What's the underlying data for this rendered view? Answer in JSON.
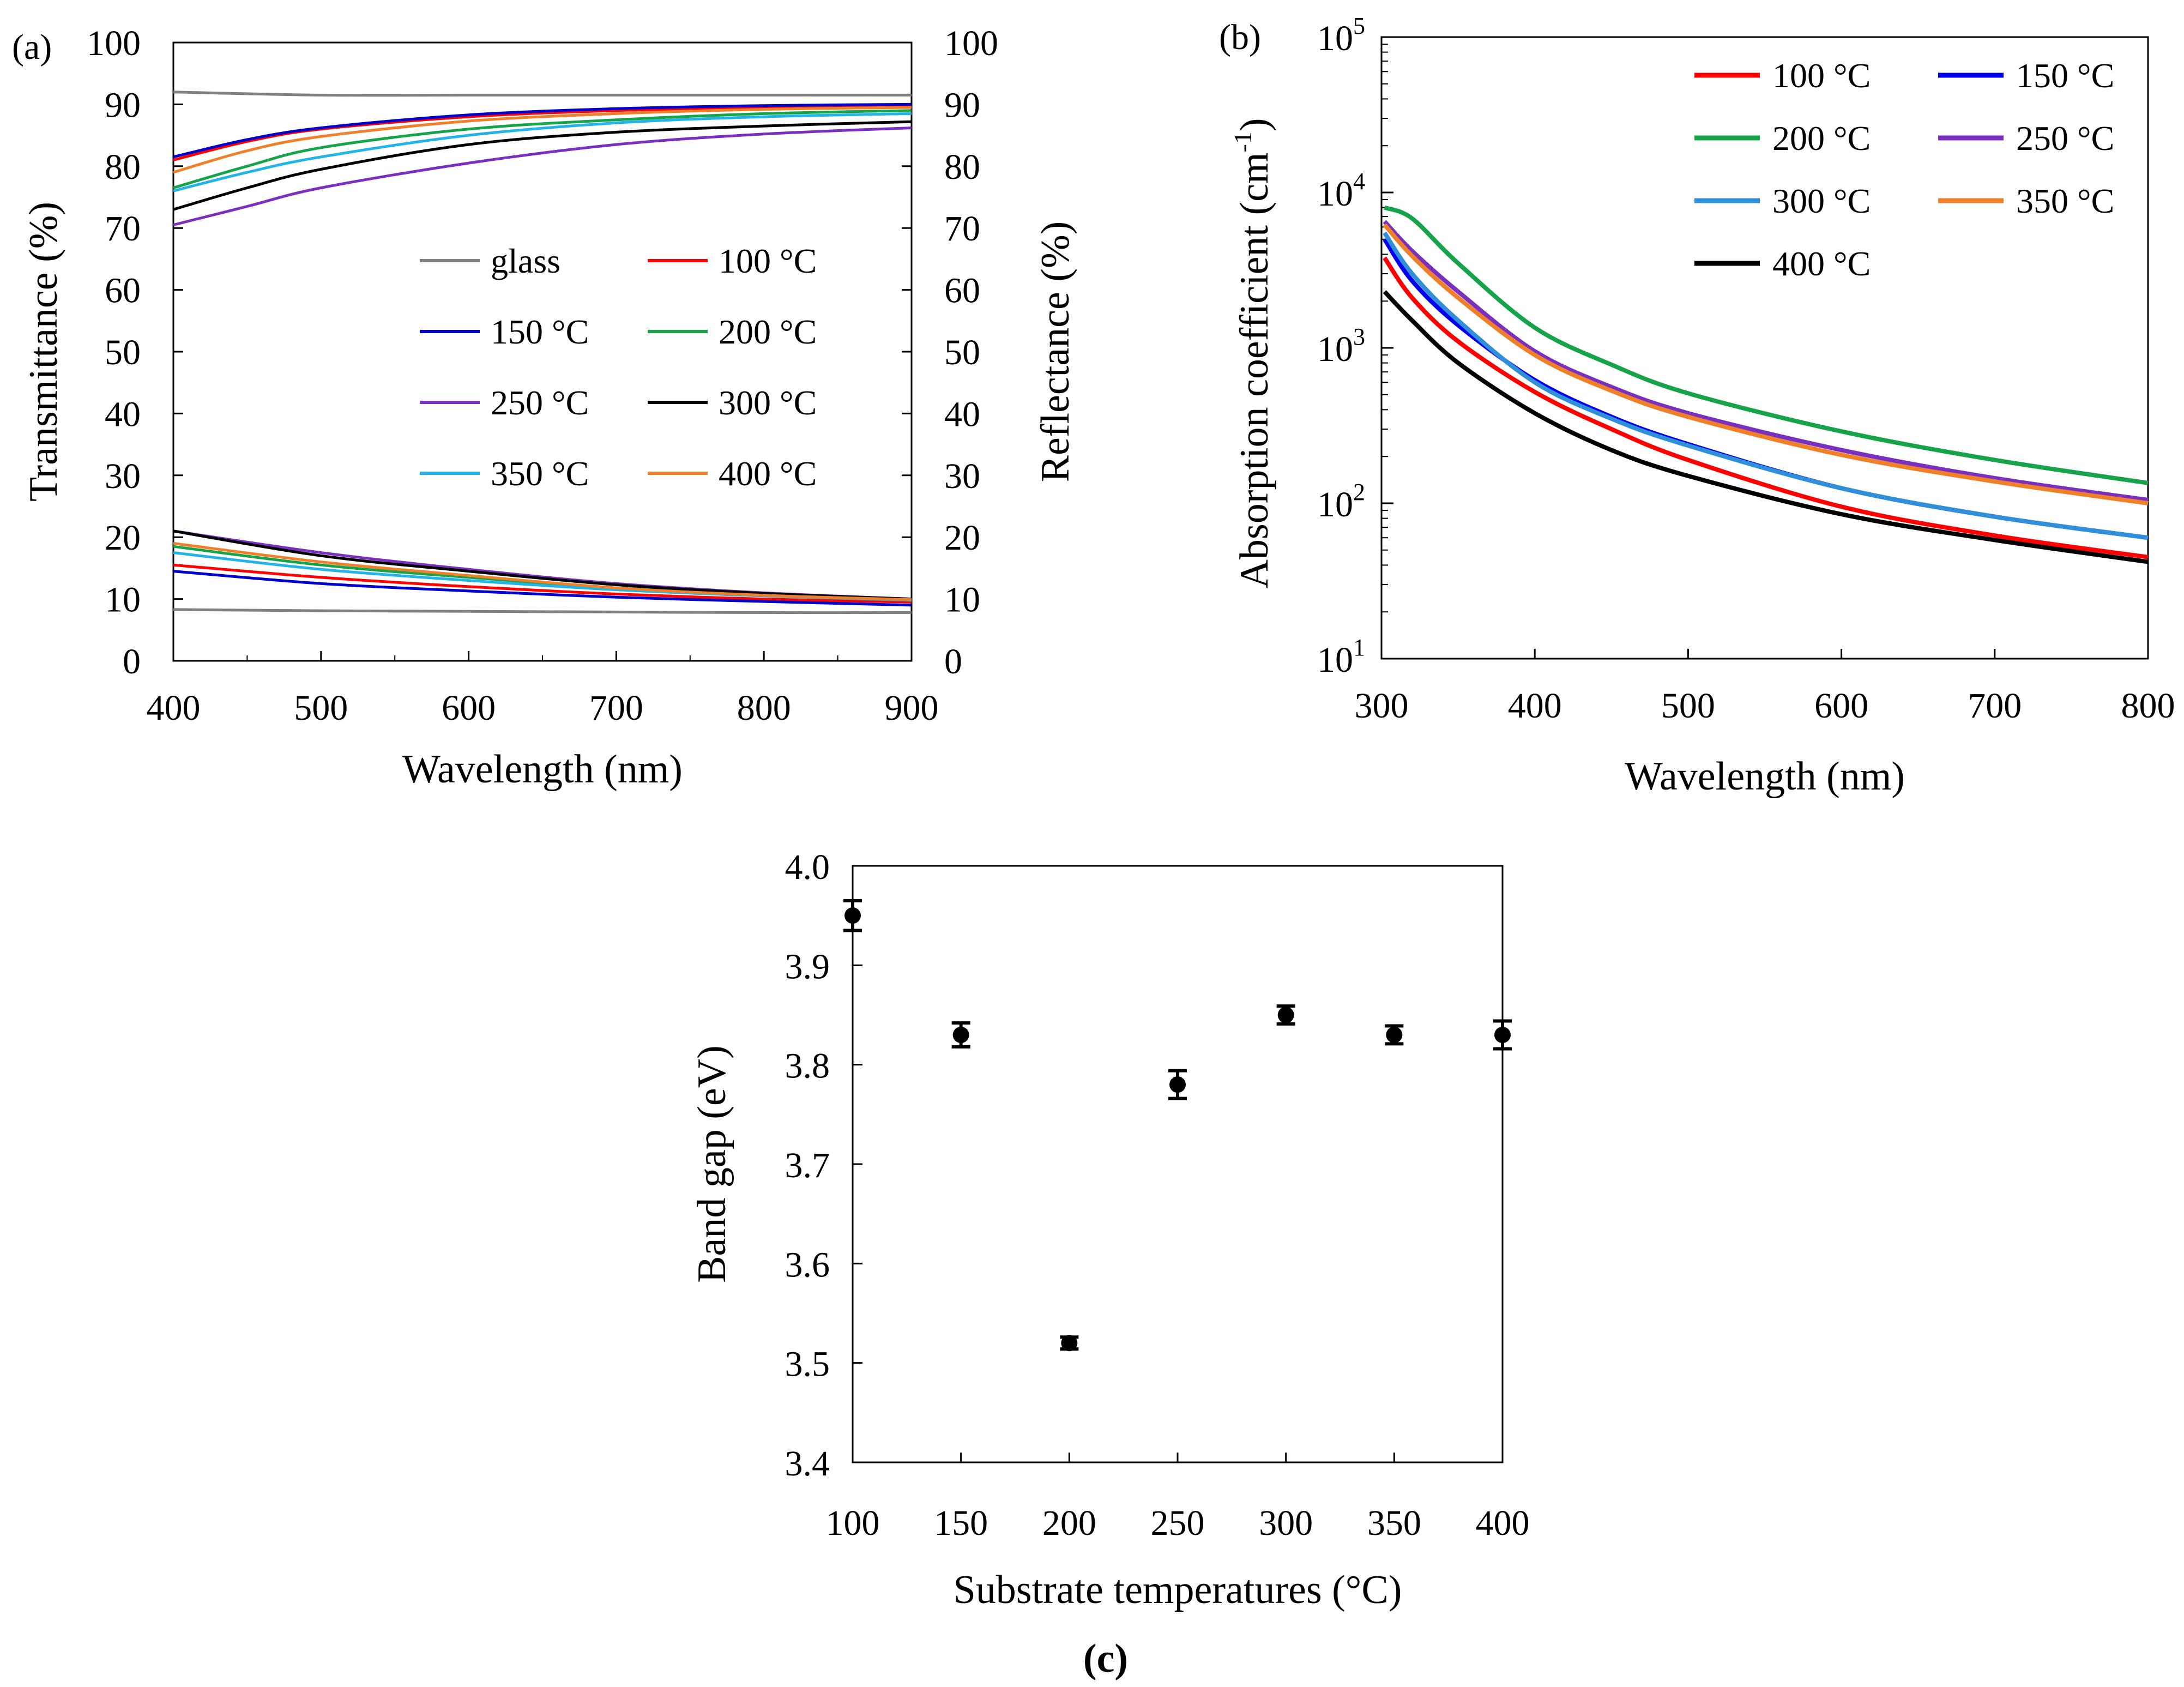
{
  "chart_data": [
    {
      "panel": "(a)",
      "type": "line",
      "xlabel": "Wavelength (nm)",
      "ylabel": "Transmittance (%)",
      "ylabel_right": "Reflectance (%)",
      "xlim": [
        400,
        900
      ],
      "ylim": [
        0,
        100
      ],
      "xticks": [
        400,
        500,
        600,
        700,
        800,
        900
      ],
      "yticks": [
        0,
        10,
        20,
        30,
        40,
        50,
        60,
        70,
        80,
        90,
        100
      ],
      "legend": [
        "glass",
        "100 °C",
        "150 °C",
        "200 °C",
        "250 °C",
        "300 °C",
        "350 °C",
        "400 °C"
      ],
      "series": [
        {
          "name": "glass",
          "color": "#808080",
          "transmittance": {
            "x": [
              400,
              500,
              600,
              700,
              800,
              900
            ],
            "y": [
              92,
              91.5,
              91.5,
              91.5,
              91.5,
              91.5
            ]
          },
          "reflectance": {
            "x": [
              400,
              500,
              600,
              700,
              800,
              900
            ],
            "y": [
              8.3,
              8.1,
              8.0,
              7.9,
              7.8,
              7.8
            ]
          }
        },
        {
          "name": "100 °C",
          "color": "#ff0000",
          "transmittance": {
            "x": [
              400,
              450,
              500,
              600,
              700,
              800,
              900
            ],
            "y": [
              81,
              84,
              86,
              88,
              89,
              89.5,
              89.8
            ]
          },
          "reflectance": {
            "x": [
              400,
              500,
              600,
              700,
              800,
              900
            ],
            "y": [
              15.5,
              13.5,
              12,
              10.8,
              10.0,
              9.5
            ]
          }
        },
        {
          "name": "150 °C",
          "color": "#0000cc",
          "transmittance": {
            "x": [
              400,
              450,
              500,
              600,
              700,
              800,
              900
            ],
            "y": [
              81.5,
              84.3,
              86.2,
              88.3,
              89.3,
              89.8,
              90
            ]
          },
          "reflectance": {
            "x": [
              400,
              500,
              600,
              700,
              800,
              900
            ],
            "y": [
              14.5,
              12.5,
              11.3,
              10.3,
              9.6,
              9.0
            ]
          }
        },
        {
          "name": "200 °C",
          "color": "#16a34a",
          "transmittance": {
            "x": [
              400,
              450,
              500,
              600,
              700,
              800,
              900
            ],
            "y": [
              76.5,
              80,
              83,
              86,
              87.5,
              88.5,
              89
            ]
          },
          "reflectance": {
            "x": [
              400,
              500,
              600,
              700,
              800,
              900
            ],
            "y": [
              18.5,
              15.5,
              13.5,
              11.8,
              10.7,
              10.0
            ]
          }
        },
        {
          "name": "250 °C",
          "color": "#7b2fbf",
          "transmittance": {
            "x": [
              400,
              450,
              500,
              600,
              700,
              800,
              900
            ],
            "y": [
              70.5,
              73.5,
              76.5,
              80.5,
              83.5,
              85.2,
              86.2
            ]
          },
          "reflectance": {
            "x": [
              400,
              500,
              600,
              700,
              800,
              900
            ],
            "y": [
              21,
              17.5,
              14.8,
              12.5,
              11.0,
              10.0
            ]
          }
        },
        {
          "name": "300 °C",
          "color": "#000000",
          "transmittance": {
            "x": [
              400,
              450,
              500,
              600,
              700,
              800,
              900
            ],
            "y": [
              73,
              76.5,
              79.5,
              83.5,
              85.5,
              86.5,
              87.2
            ]
          },
          "reflectance": {
            "x": [
              400,
              500,
              600,
              700,
              800,
              900
            ],
            "y": [
              21,
              17,
              14.5,
              12.3,
              10.9,
              10.0
            ]
          }
        },
        {
          "name": "350 °C",
          "color": "#22b4e6",
          "transmittance": {
            "x": [
              400,
              450,
              500,
              600,
              700,
              800,
              900
            ],
            "y": [
              76,
              79,
              81.5,
              85,
              87,
              88,
              88.5
            ]
          },
          "reflectance": {
            "x": [
              400,
              500,
              600,
              700,
              800,
              900
            ],
            "y": [
              17.5,
              14.8,
              13,
              11.5,
              10.5,
              9.8
            ]
          }
        },
        {
          "name": "400 °C",
          "color": "#f07f2a",
          "transmittance": {
            "x": [
              400,
              450,
              500,
              600,
              700,
              800,
              900
            ],
            "y": [
              79,
              82.5,
              84.8,
              87.3,
              88.5,
              89.2,
              89.5
            ]
          },
          "reflectance": {
            "x": [
              400,
              500,
              600,
              700,
              800,
              900
            ],
            "y": [
              19,
              16,
              13.8,
              11.8,
              10.6,
              9.9
            ]
          }
        }
      ]
    },
    {
      "panel": "(b)",
      "type": "line",
      "yscale": "log",
      "xlabel": "Wavelength (nm)",
      "ylabel": "Absorption coefficient (cm-1)",
      "xlim": [
        300,
        800
      ],
      "ylim": [
        10,
        100000
      ],
      "xticks": [
        300,
        400,
        500,
        600,
        700,
        800
      ],
      "yticks": [
        10,
        100,
        1000,
        10000,
        100000
      ],
      "legend": [
        "100 °C",
        "150 °C",
        "200 °C",
        "250 °C",
        "300 °C",
        "350 °C",
        "400 °C"
      ],
      "series": [
        {
          "name": "100 °C",
          "color": "#ff0000",
          "x": [
            302,
            320,
            350,
            400,
            450,
            500,
            600,
            700,
            800
          ],
          "y": [
            3800,
            2100,
            1100,
            520,
            300,
            190,
            95,
            62,
            45
          ]
        },
        {
          "name": "150 °C",
          "color": "#0000ee",
          "x": [
            302,
            320,
            350,
            400,
            450,
            500,
            600,
            700,
            800
          ],
          "y": [
            5000,
            2700,
            1400,
            620,
            360,
            240,
            125,
            82,
            60
          ]
        },
        {
          "name": "200 °C",
          "color": "#16a34a",
          "x": [
            302,
            320,
            350,
            400,
            450,
            500,
            600,
            700,
            800
          ],
          "y": [
            8000,
            6800,
            3500,
            1350,
            780,
            510,
            290,
            190,
            135
          ]
        },
        {
          "name": "250 °C",
          "color": "#7b2fbf",
          "x": [
            302,
            320,
            350,
            400,
            450,
            500,
            600,
            700,
            800
          ],
          "y": [
            6500,
            4200,
            2300,
            950,
            560,
            380,
            220,
            145,
            105
          ]
        },
        {
          "name": "300 °C",
          "color": "#2f8fd8",
          "x": [
            302,
            320,
            350,
            400,
            450,
            500,
            600,
            700,
            800
          ],
          "y": [
            5500,
            3000,
            1500,
            600,
            350,
            235,
            125,
            82,
            60
          ]
        },
        {
          "name": "350 °C",
          "color": "#f07f2a",
          "x": [
            302,
            320,
            350,
            400,
            450,
            500,
            600,
            700,
            800
          ],
          "y": [
            6200,
            3900,
            2100,
            900,
            530,
            360,
            205,
            138,
            100
          ]
        },
        {
          "name": "400 °C",
          "color": "#000000",
          "x": [
            302,
            320,
            350,
            400,
            450,
            500,
            600,
            700,
            800
          ],
          "y": [
            2300,
            1500,
            800,
            380,
            220,
            150,
            85,
            58,
            42
          ]
        }
      ]
    },
    {
      "panel": "(c)",
      "type": "scatter",
      "xlabel": "Substrate temperatures (°C)",
      "ylabel": "Band gap (eV)",
      "xlim": [
        100,
        400
      ],
      "ylim": [
        3.4,
        4.0
      ],
      "xticks": [
        100,
        150,
        200,
        250,
        300,
        350,
        400
      ],
      "yticks": [
        3.4,
        3.5,
        3.6,
        3.7,
        3.8,
        3.9,
        4.0
      ],
      "x": [
        100,
        150,
        200,
        250,
        300,
        350,
        400
      ],
      "y": [
        3.95,
        3.83,
        3.52,
        3.78,
        3.85,
        3.83,
        3.83
      ],
      "error": [
        0.015,
        0.012,
        0.006,
        0.014,
        0.009,
        0.009,
        0.014
      ],
      "caption": "(c)"
    }
  ]
}
